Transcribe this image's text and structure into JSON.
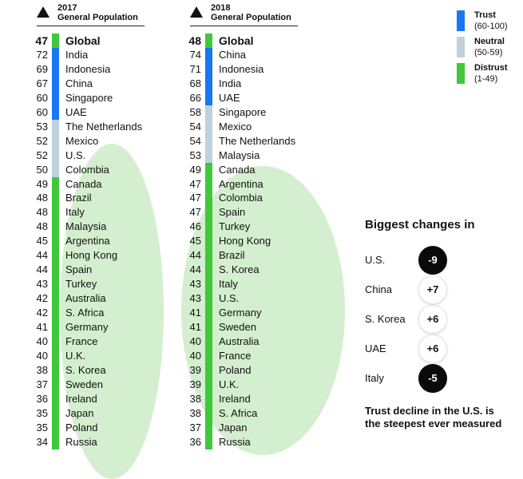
{
  "legend": [
    {
      "label": "Trust",
      "range": "(60-100)",
      "color": "#1877f2"
    },
    {
      "label": "Neutral",
      "range": "(50-59)",
      "color": "#bfd1dc"
    },
    {
      "label": "Distrust",
      "range": "(1-49)",
      "color": "#3ec83a"
    }
  ],
  "changes": {
    "title": "Biggest changes in",
    "items": [
      {
        "country": "U.S.",
        "change": "-9"
      },
      {
        "country": "China",
        "change": "+7"
      },
      {
        "country": "S. Korea",
        "change": "+6"
      },
      {
        "country": "UAE",
        "change": "+6"
      },
      {
        "country": "Italy",
        "change": "-5"
      }
    ],
    "note": [
      "Trust decline in the U.S. is",
      "the steepest ever measured"
    ]
  },
  "chart_data": [
    {
      "type": "table",
      "year": "2017",
      "subtitle": "General Population",
      "rows": [
        {
          "country": "Global",
          "value": 47
        },
        {
          "country": "India",
          "value": 72
        },
        {
          "country": "Indonesia",
          "value": 69
        },
        {
          "country": "China",
          "value": 67
        },
        {
          "country": "Singapore",
          "value": 60
        },
        {
          "country": "UAE",
          "value": 60
        },
        {
          "country": "The Netherlands",
          "value": 53
        },
        {
          "country": "Mexico",
          "value": 52
        },
        {
          "country": "U.S.",
          "value": 52
        },
        {
          "country": "Colombia",
          "value": 50
        },
        {
          "country": "Canada",
          "value": 49
        },
        {
          "country": "Brazil",
          "value": 48
        },
        {
          "country": "Italy",
          "value": 48
        },
        {
          "country": "Malaysia",
          "value": 48
        },
        {
          "country": "Argentina",
          "value": 45
        },
        {
          "country": "Hong Kong",
          "value": 44
        },
        {
          "country": "Spain",
          "value": 44
        },
        {
          "country": "Turkey",
          "value": 43
        },
        {
          "country": "Australia",
          "value": 42
        },
        {
          "country": "S. Africa",
          "value": 42
        },
        {
          "country": "Germany",
          "value": 41
        },
        {
          "country": "France",
          "value": 40
        },
        {
          "country": "U.K.",
          "value": 40
        },
        {
          "country": "S. Korea",
          "value": 38
        },
        {
          "country": "Sweden",
          "value": 37
        },
        {
          "country": "Ireland",
          "value": 36
        },
        {
          "country": "Japan",
          "value": 35
        },
        {
          "country": "Poland",
          "value": 35
        },
        {
          "country": "Russia",
          "value": 34
        }
      ]
    },
    {
      "type": "table",
      "year": "2018",
      "subtitle": "General Population",
      "rows": [
        {
          "country": "Global",
          "value": 48
        },
        {
          "country": "China",
          "value": 74
        },
        {
          "country": "Indonesia",
          "value": 71
        },
        {
          "country": "India",
          "value": 68
        },
        {
          "country": "UAE",
          "value": 66
        },
        {
          "country": "Singapore",
          "value": 58
        },
        {
          "country": "Mexico",
          "value": 54
        },
        {
          "country": "The Netherlands",
          "value": 54
        },
        {
          "country": "Malaysia",
          "value": 53
        },
        {
          "country": "Canada",
          "value": 49
        },
        {
          "country": "Argentina",
          "value": 47
        },
        {
          "country": "Colombia",
          "value": 47
        },
        {
          "country": "Spain",
          "value": 47
        },
        {
          "country": "Turkey",
          "value": 46
        },
        {
          "country": "Hong Kong",
          "value": 45
        },
        {
          "country": "Brazil",
          "value": 44
        },
        {
          "country": "S. Korea",
          "value": 44
        },
        {
          "country": "Italy",
          "value": 43
        },
        {
          "country": "U.S.",
          "value": 43
        },
        {
          "country": "Germany",
          "value": 41
        },
        {
          "country": "Sweden",
          "value": 41
        },
        {
          "country": "Australia",
          "value": 40
        },
        {
          "country": "France",
          "value": 40
        },
        {
          "country": "Poland",
          "value": 39
        },
        {
          "country": "U.K.",
          "value": 39
        },
        {
          "country": "Ireland",
          "value": 38
        },
        {
          "country": "S. Africa",
          "value": 38
        },
        {
          "country": "Japan",
          "value": 37
        },
        {
          "country": "Russia",
          "value": 36
        }
      ]
    }
  ]
}
